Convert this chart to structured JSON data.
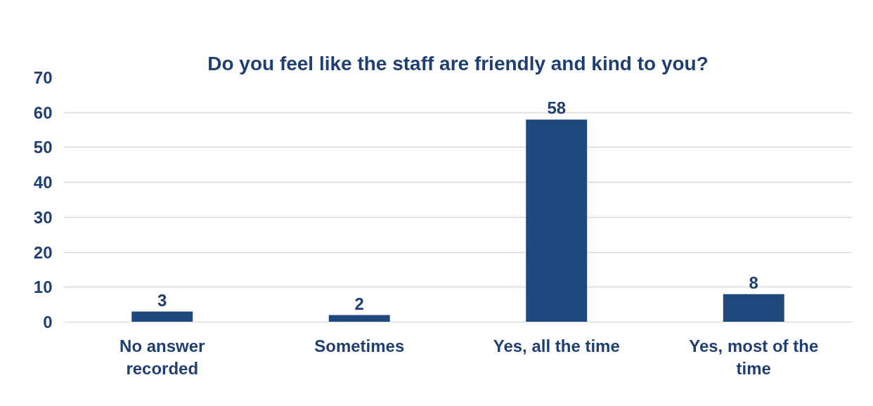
{
  "chart_data": {
    "type": "bar",
    "title": "Do you feel like the staff are friendly and kind to you?",
    "categories": [
      "No answer recorded",
      "Sometimes",
      "Yes, all the time",
      "Yes, most of the time"
    ],
    "values": [
      3,
      2,
      58,
      8
    ],
    "color": "#1f497d",
    "ylim": [
      0,
      70
    ],
    "yticks": [
      0,
      10,
      20,
      30,
      40,
      50,
      60,
      70
    ],
    "grid": "y",
    "data_labels": true
  }
}
